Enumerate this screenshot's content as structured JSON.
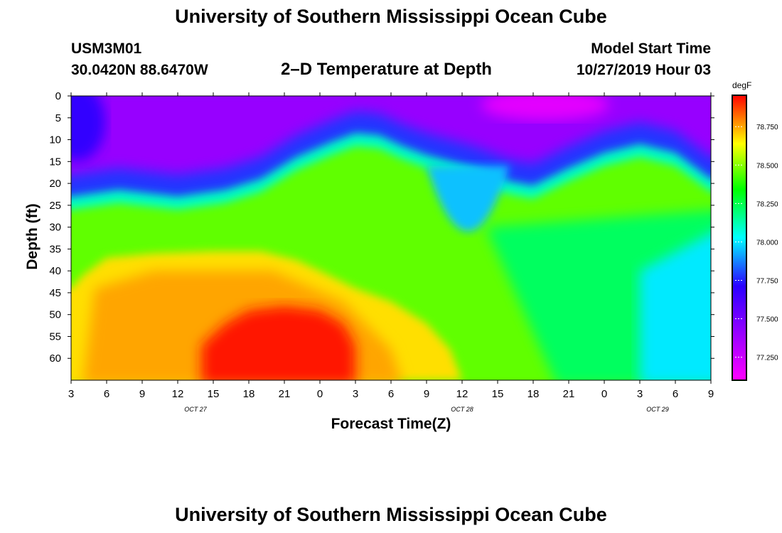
{
  "header": {
    "title_top": "University of Southern Mississippi Ocean Cube",
    "station_id": "USM3M01",
    "station_coords": "30.0420N 88.6470W",
    "plot_title": "2–D Temperature at Depth",
    "model_start_label": "Model Start Time",
    "model_start_value": "10/27/2019 Hour 03",
    "title_bottom": "University of Southern Mississippi Ocean Cube"
  },
  "chart_data": {
    "type": "heatmap",
    "title": "2–D Temperature at Depth",
    "xlabel": "Forecast Time(Z)",
    "ylabel": "Depth (ft)",
    "x_ticks": [
      "3",
      "6",
      "9",
      "12",
      "15",
      "18",
      "21",
      "0",
      "3",
      "6",
      "9",
      "12",
      "15",
      "18",
      "21",
      "0",
      "3",
      "6",
      "9"
    ],
    "x_hours": [
      3,
      6,
      9,
      12,
      15,
      18,
      21,
      24,
      27,
      30,
      33,
      36,
      39,
      42,
      45,
      48,
      51,
      54,
      57
    ],
    "x_range": [
      3,
      57
    ],
    "date_labels": [
      {
        "text": "OCT 27",
        "hour": 13.5
      },
      {
        "text": "OCT 28",
        "hour": 36
      },
      {
        "text": "OCT 29",
        "hour": 52.5
      }
    ],
    "y_ticks": [
      0,
      5,
      10,
      15,
      20,
      25,
      30,
      35,
      40,
      45,
      50,
      55,
      60
    ],
    "y_range": [
      0,
      65
    ],
    "colorbar": {
      "unit": "degF",
      "min": 77.1,
      "max": 78.95,
      "ticks": [
        78.75,
        78.5,
        78.25,
        78.0,
        77.75,
        77.5,
        77.25
      ],
      "tick_labels": [
        "78.750",
        "78.500",
        "78.250",
        "78.000",
        "77.750",
        "77.500",
        "77.250"
      ],
      "colormap": [
        "#ff00ff",
        "#9400ff",
        "#2a00ff",
        "#00ffff",
        "#00ff00",
        "#ffff00",
        "#ff0000"
      ]
    },
    "thermocline_depth_ft": [
      [
        3,
        23
      ],
      [
        7,
        21.5
      ],
      [
        12,
        23
      ],
      [
        16,
        21.5
      ],
      [
        19,
        19
      ],
      [
        22,
        14
      ],
      [
        25,
        10.5
      ],
      [
        27,
        8.5
      ],
      [
        29,
        9
      ],
      [
        31,
        11.5
      ],
      [
        33,
        13.5
      ],
      [
        35,
        15
      ],
      [
        37,
        16.5
      ],
      [
        40,
        19.5
      ],
      [
        42,
        20.5
      ],
      [
        45,
        16.5
      ],
      [
        48,
        13
      ],
      [
        51,
        11
      ],
      [
        54,
        13
      ],
      [
        57,
        19
      ]
    ],
    "warm_core_top_ft": [
      [
        3,
        44
      ],
      [
        4,
        41
      ],
      [
        6,
        37
      ],
      [
        10,
        36
      ],
      [
        15,
        35.5
      ],
      [
        19,
        35.5
      ],
      [
        22,
        37.5
      ],
      [
        24,
        40
      ],
      [
        27,
        44
      ],
      [
        30,
        47
      ],
      [
        33,
        52
      ],
      [
        35,
        58
      ],
      [
        36,
        65
      ]
    ],
    "hot_core_top_ft": [
      [
        14,
        57
      ],
      [
        16,
        52
      ],
      [
        18,
        49
      ],
      [
        21,
        48
      ],
      [
        24,
        49
      ],
      [
        26,
        52
      ],
      [
        27,
        57
      ]
    ],
    "cool_pocket": {
      "hour": 36.5,
      "depth_ft": 30,
      "value": 77.95
    },
    "values_summary": {
      "surface_mixed_layer": 77.4,
      "thermocline": 78.1,
      "mid_layer": 78.45,
      "warm_core": 78.75,
      "hot_core": 78.92,
      "east_deep": 78.0
    }
  }
}
